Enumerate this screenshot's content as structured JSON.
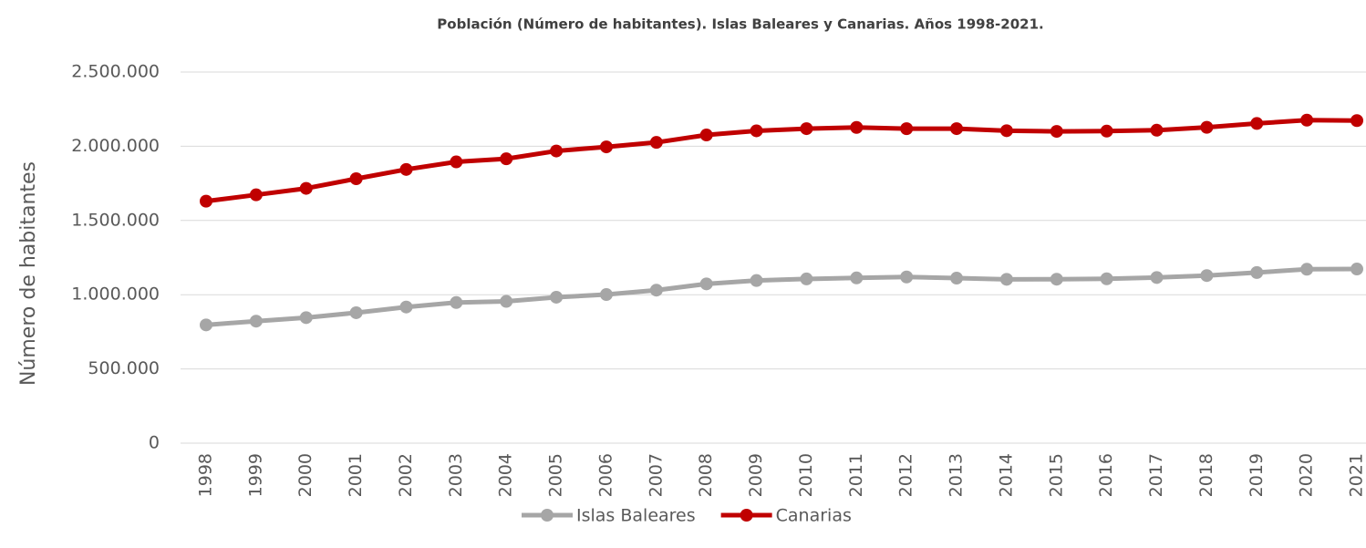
{
  "chart_data": {
    "type": "line",
    "title": "Población (Número de habitantes). Islas Baleares y Canarias. Años 1998-2021.",
    "y_label": "Número de habitantes",
    "categories": [
      "1998",
      "1999",
      "2000",
      "2001",
      "2002",
      "2003",
      "2004",
      "2005",
      "2006",
      "2007",
      "2008",
      "2009",
      "2010",
      "2011",
      "2012",
      "2013",
      "2014",
      "2015",
      "2016",
      "2017",
      "2018",
      "2019",
      "2020",
      "2021"
    ],
    "series": [
      {
        "name": "Islas Baleares",
        "color": "#a6a6a6",
        "values": [
          796483,
          821820,
          845630,
          878627,
          916968,
          947361,
          955045,
          983131,
          1001062,
          1030650,
          1072844,
          1095426,
          1106049,
          1113114,
          1119439,
          1111674,
          1103442,
          1104479,
          1107220,
          1115999,
          1128908,
          1149460,
          1171543,
          1173008
        ]
      },
      {
        "name": "Canarias",
        "color": "#c00000",
        "values": [
          1630015,
          1672689,
          1716276,
          1781366,
          1843755,
          1894868,
          1915540,
          1968280,
          1995833,
          2025951,
          2075968,
          2103992,
          2118519,
          2126769,
          2118344,
          2118679,
          2104815,
          2100306,
          2101924,
          2108121,
          2127685,
          2153389,
          2175952,
          2172944
        ]
      }
    ],
    "ylim": [
      0,
      2500000
    ],
    "yticks": [
      0,
      {
        "value": 500000,
        "label": "500.000"
      },
      {
        "value": 1000000,
        "label": "1.000.000"
      },
      {
        "value": 1500000,
        "label": "1.500.000"
      },
      {
        "value": 2000000,
        "label": "2.000.000"
      },
      {
        "value": 2500000,
        "label": "2.500.000"
      }
    ],
    "grid": true,
    "legend": "bottom"
  }
}
